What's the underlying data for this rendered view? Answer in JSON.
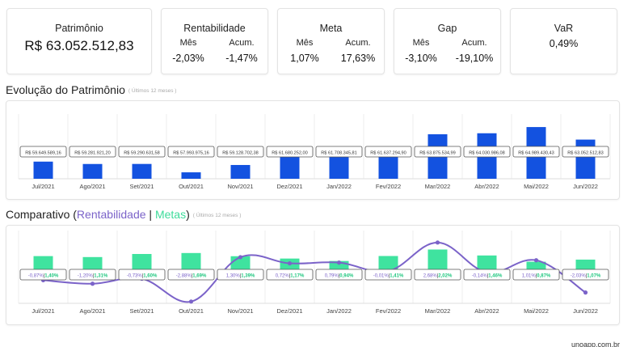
{
  "cards": {
    "patrimonio": {
      "title": "Patrimônio",
      "value": "R$ 63.052.512,83"
    },
    "rentabilidade": {
      "title": "Rentabilidade",
      "mes_label": "Mês",
      "acum_label": "Acum.",
      "mes": "-2,03%",
      "acum": "-1,47%"
    },
    "meta": {
      "title": "Meta",
      "mes_label": "Mês",
      "acum_label": "Acum.",
      "mes": "1,07%",
      "acum": "17,63%"
    },
    "gap": {
      "title": "Gap",
      "mes_label": "Mês",
      "acum_label": "Acum.",
      "mes": "-3,10%",
      "acum": "-19,10%"
    },
    "var": {
      "title": "VaR",
      "value": "0,49%"
    }
  },
  "evolucao": {
    "title": "Evolução do Patrimônio",
    "note": "( Últimos 12 meses )"
  },
  "comparativo": {
    "title_prefix": "Comparativo (",
    "rent": "Rentabilidade",
    "sep": " | ",
    "meta": "Metas",
    "title_suffix": ")",
    "note": "( Últimos 12 meses )"
  },
  "chart_data": [
    {
      "type": "bar",
      "title": "Evolução do Patrimônio",
      "categories": [
        "Jul/2021",
        "Ago/2021",
        "Set/2021",
        "Out/2021",
        "Nov/2021",
        "Dez/2021",
        "Jan/2022",
        "Fev/2022",
        "Mar/2022",
        "Abr/2022",
        "Mai/2022",
        "Jun/2022"
      ],
      "values": [
        59649589.16,
        59281921.2,
        59290631.58,
        57993975.16,
        59128702.38,
        61680252.0,
        61708345.81,
        61637294.9,
        63875534.99,
        64030986.08,
        64989430.43,
        63052512.83
      ],
      "labels": [
        "R$ 59.649.589,16",
        "R$ 59.281.921,20",
        "R$ 59.290.631,58",
        "R$ 57.993.975,16",
        "R$ 59.128.702,38",
        "R$ 61.680.252,00",
        "R$ 61.708.345,81",
        "R$ 61.637.294,90",
        "R$ 63.875.534,99",
        "R$ 64.030.986,08",
        "R$ 64.989.430,43",
        "R$ 63.052.512,83"
      ],
      "color": "#1352e0",
      "ylim": [
        57000000,
        65500000
      ]
    },
    {
      "type": "bar+line",
      "title": "Comparativo (Rentabilidade | Metas)",
      "categories": [
        "Jul/2021",
        "Ago/2021",
        "Set/2021",
        "Out/2021",
        "Nov/2021",
        "Dez/2021",
        "Jan/2022",
        "Fev/2022",
        "Mar/2022",
        "Abr/2022",
        "Mai/2022",
        "Jun/2022"
      ],
      "series": [
        {
          "name": "Metas",
          "type": "bar",
          "color": "#3fe39f",
          "values": [
            1.4,
            1.31,
            1.6,
            1.69,
            1.39,
            1.17,
            0.94,
            1.41,
            2.02,
            1.46,
            0.87,
            1.07
          ],
          "labels": [
            "1,40%",
            "1,31%",
            "1,60%",
            "1,69%",
            "1,39%",
            "1,17%",
            "0,94%",
            "1,41%",
            "2,02%",
            "1,46%",
            "0,87%",
            "1,07%"
          ]
        },
        {
          "name": "Rentabilidade",
          "type": "line",
          "color": "#7b63c9",
          "values": [
            -0.87,
            -1.2,
            -0.73,
            -2.88,
            1.3,
            0.72,
            0.79,
            -0.01,
            2.68,
            -0.14,
            1.01,
            -2.03
          ],
          "labels": [
            "-0,87%",
            "-1,20%",
            "-0,73%",
            "-2,88%",
            "1,30%",
            "0,72%",
            "0,79%",
            "-0,01%",
            "2,68%",
            "-0,14%",
            "1,01%",
            "-2,03%"
          ]
        }
      ],
      "ylim": [
        -3.2,
        3.2
      ]
    }
  ],
  "footer": "unoapp.com.br"
}
